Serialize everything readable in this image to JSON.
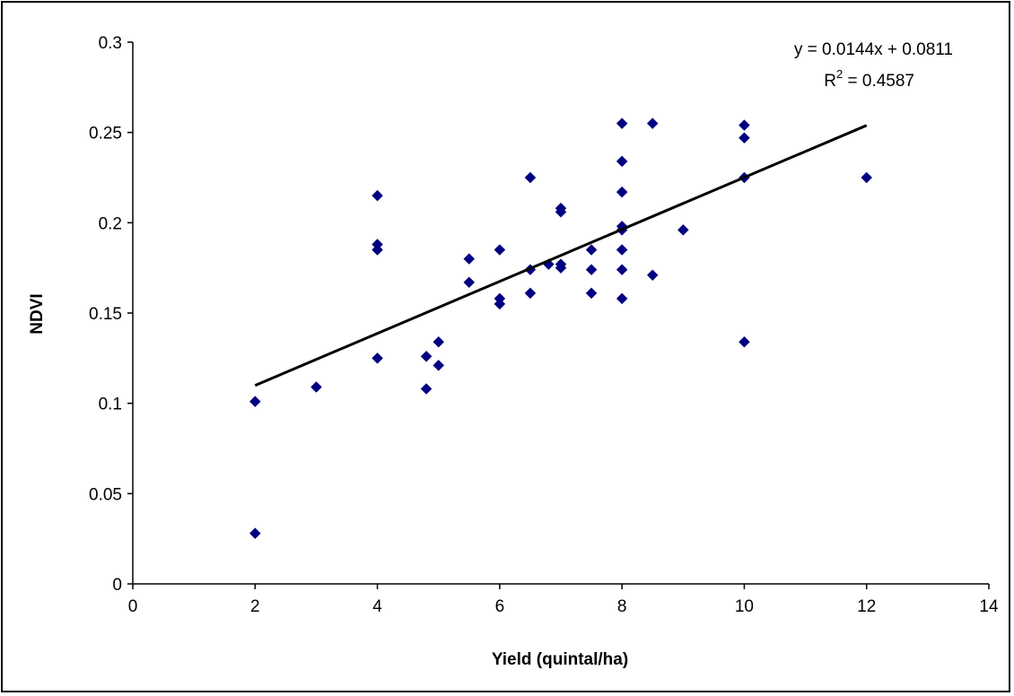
{
  "chart_data": {
    "type": "scatter",
    "xlabel": "Yield (quintal/ha)",
    "ylabel": "NDVI",
    "xlim": [
      0,
      14
    ],
    "ylim": [
      0,
      0.3
    ],
    "x_ticks": [
      "0",
      "2",
      "4",
      "6",
      "8",
      "10",
      "12",
      "14"
    ],
    "y_ticks": [
      "0",
      "0.05",
      "0.1",
      "0.15",
      "0.2",
      "0.25",
      "0.3"
    ],
    "grid": false,
    "legend": "none",
    "marker_color": "#000080",
    "trendline": {
      "slope": 0.0144,
      "intercept": 0.0811,
      "x_range": [
        2,
        12
      ],
      "equation_text": "y = 0.0144x + 0.0811",
      "r2_prefix": "R",
      "r2_sup": "2",
      "r2_suffix": " = 0.4587",
      "color": "#000000"
    },
    "points": [
      [
        2,
        0.101
      ],
      [
        2,
        0.028
      ],
      [
        3,
        0.109
      ],
      [
        4,
        0.215
      ],
      [
        4,
        0.188
      ],
      [
        4,
        0.185
      ],
      [
        4,
        0.125
      ],
      [
        4.8,
        0.126
      ],
      [
        4.8,
        0.108
      ],
      [
        5,
        0.134
      ],
      [
        5,
        0.121
      ],
      [
        5.5,
        0.18
      ],
      [
        5.5,
        0.167
      ],
      [
        6,
        0.185
      ],
      [
        6,
        0.158
      ],
      [
        6,
        0.155
      ],
      [
        6.5,
        0.225
      ],
      [
        6.5,
        0.174
      ],
      [
        6.5,
        0.161
      ],
      [
        6.8,
        0.177
      ],
      [
        7,
        0.208
      ],
      [
        7,
        0.206
      ],
      [
        7,
        0.177
      ],
      [
        7,
        0.175
      ],
      [
        7.5,
        0.185
      ],
      [
        7.5,
        0.174
      ],
      [
        7.5,
        0.161
      ],
      [
        8,
        0.255
      ],
      [
        8,
        0.234
      ],
      [
        8,
        0.217
      ],
      [
        8,
        0.198
      ],
      [
        8,
        0.196
      ],
      [
        8,
        0.185
      ],
      [
        8,
        0.174
      ],
      [
        8,
        0.158
      ],
      [
        8.5,
        0.255
      ],
      [
        8.5,
        0.171
      ],
      [
        9,
        0.196
      ],
      [
        10,
        0.254
      ],
      [
        10,
        0.247
      ],
      [
        10,
        0.225
      ],
      [
        10,
        0.134
      ],
      [
        12,
        0.225
      ]
    ]
  }
}
